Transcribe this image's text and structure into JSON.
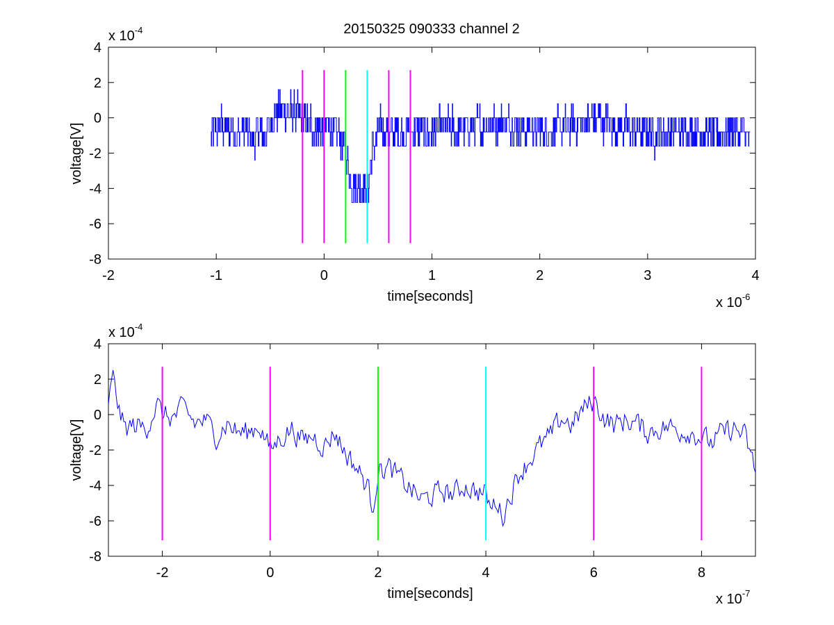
{
  "figure": {
    "title": "20150325 090333 channel 2"
  },
  "colors": {
    "trace": "#0000ff",
    "marker_magenta": "#ff00ff",
    "marker_green": "#00ff00",
    "marker_cyan": "#00ffff",
    "axes": "#000000"
  },
  "chart_data": [
    {
      "type": "line",
      "title": "20150325 090333 channel 2",
      "xlabel": "time[seconds]",
      "ylabel": "voltage[V]",
      "x_exponent_label": "x 10",
      "x_exponent": "-6",
      "y_exponent_label": "x 10",
      "y_exponent": "-4",
      "xlim": [
        -2,
        4
      ],
      "ylim": [
        -8,
        4
      ],
      "xticks": [
        -2,
        -1,
        0,
        1,
        2,
        3,
        4
      ],
      "yticks": [
        -8,
        -6,
        -4,
        -2,
        0,
        2,
        4
      ],
      "grid": false,
      "series": [
        {
          "x_start": -1.05,
          "x_end": 3.95,
          "points": [
            [
              -1.05,
              -1.0
            ],
            [
              -1.0,
              -0.6
            ],
            [
              -0.95,
              -0.4
            ],
            [
              -0.9,
              -0.8
            ],
            [
              -0.85,
              -0.6
            ],
            [
              -0.8,
              -1.0
            ],
            [
              -0.75,
              -0.7
            ],
            [
              -0.7,
              -1.0
            ],
            [
              -0.65,
              -1.2
            ],
            [
              -0.6,
              -0.8
            ],
            [
              -0.55,
              -0.9
            ],
            [
              -0.5,
              -0.3
            ],
            [
              -0.45,
              0.2
            ],
            [
              -0.4,
              0.6
            ],
            [
              -0.35,
              0.3
            ],
            [
              -0.3,
              0.2
            ],
            [
              -0.25,
              0.1
            ],
            [
              -0.2,
              0.0
            ],
            [
              -0.15,
              -0.3
            ],
            [
              -0.1,
              -0.4
            ],
            [
              -0.05,
              -0.7
            ],
            [
              0.0,
              -0.5
            ],
            [
              0.05,
              -0.6
            ],
            [
              0.1,
              -0.9
            ],
            [
              0.15,
              -1.2
            ],
            [
              0.2,
              -2.0
            ],
            [
              0.25,
              -3.5
            ],
            [
              0.3,
              -4.0
            ],
            [
              0.35,
              -3.8
            ],
            [
              0.4,
              -4.2
            ],
            [
              0.45,
              -1.6
            ],
            [
              0.5,
              -0.9
            ],
            [
              0.55,
              -0.6
            ],
            [
              0.6,
              -1.0
            ],
            [
              0.65,
              -0.8
            ],
            [
              0.7,
              -0.9
            ],
            [
              0.75,
              -0.7
            ],
            [
              0.8,
              -0.6
            ],
            [
              0.85,
              -0.8
            ],
            [
              0.9,
              -0.7
            ],
            [
              0.95,
              -0.9
            ],
            [
              1.0,
              -0.8
            ],
            [
              1.1,
              -0.5
            ],
            [
              1.2,
              -0.6
            ],
            [
              1.3,
              -0.7
            ],
            [
              1.4,
              -0.5
            ],
            [
              1.5,
              -0.4
            ],
            [
              1.6,
              -0.3
            ],
            [
              1.7,
              -0.2
            ],
            [
              1.8,
              -0.5
            ],
            [
              1.9,
              -0.6
            ],
            [
              2.0,
              -0.7
            ],
            [
              2.1,
              -0.8
            ],
            [
              2.2,
              -0.6
            ],
            [
              2.3,
              -0.5
            ],
            [
              2.4,
              -0.3
            ],
            [
              2.5,
              0.0
            ],
            [
              2.6,
              -0.2
            ],
            [
              2.7,
              -0.4
            ],
            [
              2.8,
              -0.6
            ],
            [
              2.9,
              -0.8
            ],
            [
              3.0,
              -0.9
            ],
            [
              3.1,
              -0.8
            ],
            [
              3.2,
              -0.9
            ],
            [
              3.3,
              -0.8
            ],
            [
              3.4,
              -0.7
            ],
            [
              3.5,
              -0.8
            ],
            [
              3.6,
              -0.9
            ],
            [
              3.7,
              -0.8
            ],
            [
              3.8,
              -0.7
            ],
            [
              3.9,
              -0.9
            ],
            [
              3.95,
              -1.3
            ]
          ],
          "noise": 1.4
        }
      ],
      "markers": [
        {
          "x": -0.2,
          "color": "#ff00ff"
        },
        {
          "x": 0.0,
          "color": "#ff00ff"
        },
        {
          "x": 0.2,
          "color": "#00ff00"
        },
        {
          "x": 0.4,
          "color": "#00ffff"
        },
        {
          "x": 0.6,
          "color": "#ff00ff"
        },
        {
          "x": 0.8,
          "color": "#ff00ff"
        }
      ],
      "marker_range": [
        -7.1,
        2.7
      ]
    },
    {
      "type": "line",
      "title": "",
      "xlabel": "time[seconds]",
      "ylabel": "voltage[V]",
      "x_exponent_label": "x 10",
      "x_exponent": "-7",
      "y_exponent_label": "x 10",
      "y_exponent": "-4",
      "xlim": [
        -3,
        9
      ],
      "ylim": [
        -8,
        4
      ],
      "xticks": [
        -2,
        0,
        2,
        4,
        6,
        8
      ],
      "yticks": [
        -8,
        -6,
        -4,
        -2,
        0,
        2,
        4
      ],
      "grid": false,
      "series": [
        {
          "x_start": -3,
          "x_end": 9,
          "points": [
            [
              -3.0,
              0.8
            ],
            [
              -2.9,
              2.2
            ],
            [
              -2.8,
              0.2
            ],
            [
              -2.7,
              -0.8
            ],
            [
              -2.5,
              -0.6
            ],
            [
              -2.3,
              -0.8
            ],
            [
              -2.1,
              0.6
            ],
            [
              -2.0,
              0.0
            ],
            [
              -1.8,
              -0.2
            ],
            [
              -1.6,
              0.4
            ],
            [
              -1.4,
              -0.5
            ],
            [
              -1.2,
              -0.3
            ],
            [
              -1.0,
              -1.2
            ],
            [
              -0.8,
              -0.5
            ],
            [
              -0.6,
              -1.0
            ],
            [
              -0.4,
              -1.0
            ],
            [
              -0.2,
              -0.6
            ],
            [
              0.0,
              -2.0
            ],
            [
              0.2,
              -1.3
            ],
            [
              0.4,
              -0.8
            ],
            [
              0.6,
              -1.5
            ],
            [
              0.8,
              -1.2
            ],
            [
              1.0,
              -1.8
            ],
            [
              1.2,
              -1.0
            ],
            [
              1.4,
              -2.2
            ],
            [
              1.6,
              -3.0
            ],
            [
              1.8,
              -4.0
            ],
            [
              1.9,
              -5.2
            ],
            [
              2.0,
              -3.2
            ],
            [
              2.2,
              -3.0
            ],
            [
              2.4,
              -3.6
            ],
            [
              2.6,
              -4.2
            ],
            [
              2.8,
              -4.8
            ],
            [
              3.0,
              -4.6
            ],
            [
              3.2,
              -4.3
            ],
            [
              3.4,
              -4.5
            ],
            [
              3.6,
              -4.0
            ],
            [
              3.8,
              -4.3
            ],
            [
              4.0,
              -4.5
            ],
            [
              4.1,
              -5.4
            ],
            [
              4.2,
              -4.8
            ],
            [
              4.3,
              -5.8
            ],
            [
              4.4,
              -5.0
            ],
            [
              4.6,
              -3.4
            ],
            [
              4.8,
              -2.6
            ],
            [
              5.0,
              -1.8
            ],
            [
              5.2,
              -1.2
            ],
            [
              5.4,
              -0.2
            ],
            [
              5.6,
              -0.6
            ],
            [
              5.8,
              0.3
            ],
            [
              6.0,
              0.8
            ],
            [
              6.2,
              -0.2
            ],
            [
              6.4,
              -0.6
            ],
            [
              6.6,
              -0.3
            ],
            [
              6.8,
              -0.5
            ],
            [
              7.0,
              -1.0
            ],
            [
              7.2,
              -0.8
            ],
            [
              7.4,
              -0.7
            ],
            [
              7.6,
              -0.9
            ],
            [
              7.8,
              -1.0
            ],
            [
              8.0,
              -1.3
            ],
            [
              8.2,
              -1.6
            ],
            [
              8.4,
              -1.0
            ],
            [
              8.6,
              -0.8
            ],
            [
              8.8,
              -1.2
            ],
            [
              9.0,
              -3.2
            ]
          ],
          "noise": 0.9
        }
      ],
      "markers": [
        {
          "x": -2,
          "color": "#ff00ff"
        },
        {
          "x": 0,
          "color": "#ff00ff"
        },
        {
          "x": 2,
          "color": "#00ff00"
        },
        {
          "x": 4,
          "color": "#00ffff"
        },
        {
          "x": 6,
          "color": "#ff00ff"
        },
        {
          "x": 8,
          "color": "#ff00ff"
        }
      ],
      "marker_range": [
        -7.1,
        2.7
      ]
    }
  ]
}
